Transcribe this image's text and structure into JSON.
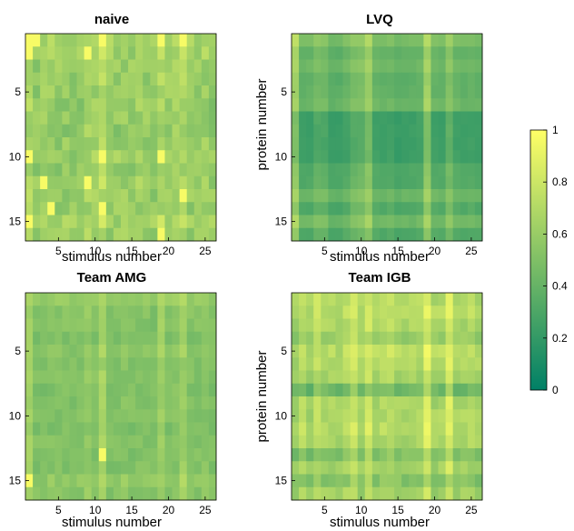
{
  "chart_data": [
    {
      "type": "heatmap",
      "title": "naive",
      "xlabel": "stimulus number",
      "ylabel": "",
      "x_range": [
        1,
        26
      ],
      "y_range": [
        1,
        16
      ],
      "x_ticks": [
        5,
        10,
        15,
        20,
        25
      ],
      "y_ticks": [
        5,
        10,
        15
      ],
      "col_weights": [
        0.92,
        0.38,
        0.55,
        0.62,
        0.48,
        0.45,
        0.35,
        0.44,
        0.75,
        0.6,
        1.0,
        0.52,
        0.45,
        0.55,
        0.4,
        0.65,
        0.45,
        0.38,
        0.9,
        0.45,
        0.6,
        0.95,
        0.5,
        0.48,
        0.55,
        0.4
      ],
      "row_weights": [
        0.95,
        0.8,
        0.6,
        0.5,
        0.55,
        0.45,
        0.5,
        0.4,
        0.5,
        0.7,
        0.45,
        0.65,
        0.55,
        0.5,
        0.85,
        0.55
      ],
      "range": [
        0.4,
        0.78
      ],
      "noise": 0.18,
      "hot_cells": [
        [
          1,
          1
        ],
        [
          1,
          2
        ],
        [
          2,
          1
        ],
        [
          1,
          15
        ],
        [
          1,
          10
        ],
        [
          3,
          12
        ],
        [
          9,
          12
        ],
        [
          9,
          2
        ],
        [
          4,
          14
        ],
        [
          11,
          1
        ],
        [
          11,
          10
        ],
        [
          11,
          14
        ],
        [
          19,
          1
        ],
        [
          19,
          10
        ],
        [
          19,
          16
        ],
        [
          22,
          1
        ],
        [
          22,
          13
        ]
      ]
    },
    {
      "type": "heatmap",
      "title": "LVQ",
      "xlabel": "stimulus number",
      "ylabel": "protein number",
      "x_range": [
        1,
        26
      ],
      "y_range": [
        1,
        16
      ],
      "x_ticks": [
        5,
        10,
        15,
        20,
        25
      ],
      "y_ticks": [
        5,
        10,
        15
      ],
      "col_weights": [
        0.95,
        0.3,
        0.3,
        0.5,
        0.45,
        0.25,
        0.25,
        0.35,
        0.55,
        0.6,
        0.85,
        0.35,
        0.3,
        0.35,
        0.25,
        0.3,
        0.3,
        0.35,
        0.92,
        0.35,
        0.3,
        0.65,
        0.35,
        0.3,
        0.35,
        0.3
      ],
      "row_weights": [
        0.8,
        0.5,
        0.65,
        0.45,
        0.5,
        0.6,
        0.05,
        0.05,
        0.05,
        0.05,
        0.3,
        0.3,
        0.6,
        0.3,
        0.65,
        0.3
      ],
      "range": [
        0.1,
        0.82
      ],
      "noise": 0.04,
      "hot_cells": []
    },
    {
      "type": "heatmap",
      "title": "Team AMG",
      "xlabel": "stimulus number",
      "ylabel": "",
      "x_range": [
        1,
        26
      ],
      "y_range": [
        1,
        16
      ],
      "x_ticks": [
        5,
        10,
        15,
        20,
        25
      ],
      "y_ticks": [
        5,
        10,
        15
      ],
      "col_weights": [
        0.9,
        0.4,
        0.4,
        0.45,
        0.45,
        0.45,
        0.38,
        0.45,
        0.7,
        0.45,
        0.95,
        0.4,
        0.45,
        0.5,
        0.4,
        0.45,
        0.42,
        0.38,
        0.85,
        0.42,
        0.5,
        0.85,
        0.45,
        0.42,
        0.5,
        0.4
      ],
      "row_weights": [
        0.85,
        0.55,
        0.55,
        0.45,
        0.7,
        0.5,
        0.55,
        0.45,
        0.55,
        0.5,
        0.45,
        0.55,
        0.5,
        0.5,
        0.8,
        0.55
      ],
      "range": [
        0.3,
        0.75
      ],
      "noise": 0.1,
      "hot_cells": [
        [
          1,
          15
        ],
        [
          11,
          13
        ]
      ]
    },
    {
      "type": "heatmap",
      "title": "Team IGB",
      "xlabel": "stimulus number",
      "ylabel": "protein number",
      "x_range": [
        1,
        26
      ],
      "y_range": [
        1,
        16
      ],
      "x_ticks": [
        5,
        10,
        15,
        20,
        25
      ],
      "y_ticks": [
        5,
        10,
        15
      ],
      "col_weights": [
        0.5,
        0.7,
        0.5,
        0.75,
        0.6,
        0.6,
        0.55,
        0.7,
        0.85,
        0.55,
        0.88,
        0.6,
        0.65,
        0.75,
        0.6,
        0.55,
        0.6,
        0.6,
        1.0,
        0.55,
        0.6,
        1.0,
        0.55,
        0.6,
        0.65,
        0.55
      ],
      "row_weights": [
        0.8,
        0.85,
        0.7,
        0.55,
        0.85,
        0.75,
        0.65,
        0.1,
        0.7,
        0.75,
        0.8,
        0.7,
        0.3,
        0.6,
        0.3,
        0.6
      ],
      "range": [
        0.15,
        0.95
      ],
      "noise": 0.12,
      "hot_cells": []
    }
  ],
  "colorbar": {
    "min": 0,
    "max": 1,
    "ticks": [
      "0",
      "0.2",
      "0.4",
      "0.6",
      "0.8",
      "1"
    ],
    "colormap": "summer",
    "low_color": "#008066",
    "high_color": "#ffff66"
  }
}
